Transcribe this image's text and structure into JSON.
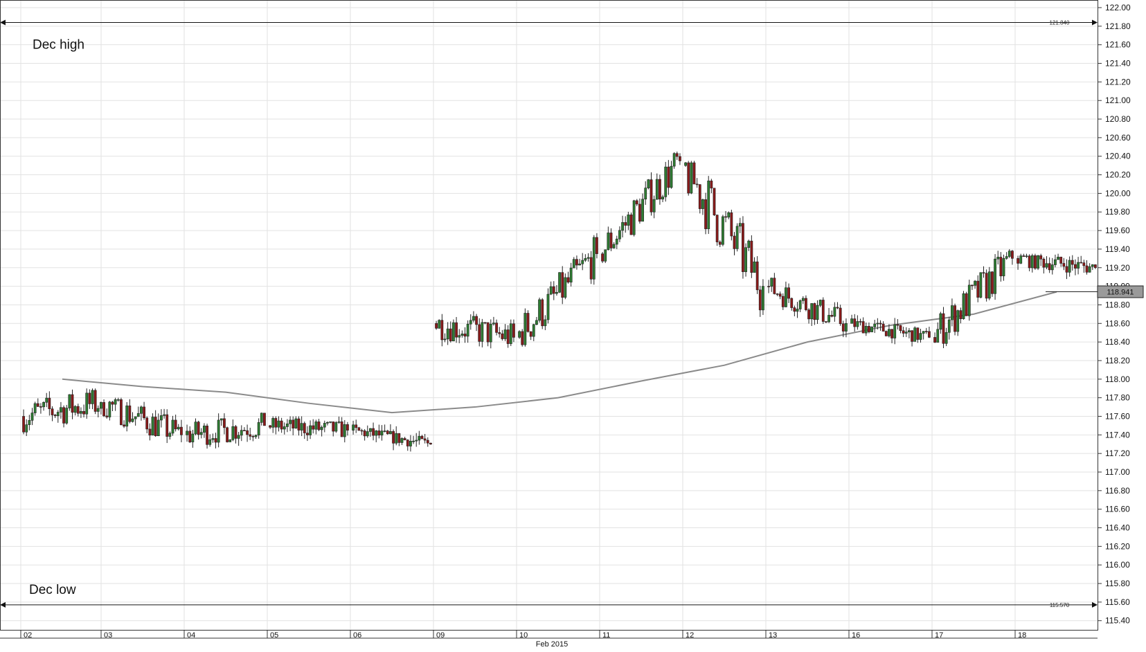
{
  "chart_data": {
    "type": "candlestick",
    "xlabel": "Feb 2015",
    "ylim": [
      115.3,
      122.0
    ],
    "y_ticks": [
      "122.00",
      "121.80",
      "121.60",
      "121.40",
      "121.20",
      "121.00",
      "120.80",
      "120.60",
      "120.40",
      "120.20",
      "120.00",
      "119.80",
      "119.60",
      "119.40",
      "119.20",
      "119.00",
      "118.80",
      "118.60",
      "118.40",
      "118.20",
      "118.00",
      "117.80",
      "117.60",
      "117.40",
      "117.20",
      "117.00",
      "116.80",
      "116.60",
      "116.40",
      "116.20",
      "116.00",
      "115.80",
      "115.60",
      "115.40"
    ],
    "x_days": [
      "02",
      "03",
      "04",
      "05",
      "06",
      "09",
      "10",
      "11",
      "12",
      "13",
      "16",
      "17",
      "18"
    ],
    "current_price": 118.941,
    "current_price_label": "118.941",
    "moving_average": [
      {
        "day": "02",
        "value": 118.0
      },
      {
        "day": "03",
        "value": 117.92
      },
      {
        "day": "04",
        "value": 117.86
      },
      {
        "day": "05",
        "value": 117.74
      },
      {
        "day": "06",
        "value": 117.64
      },
      {
        "day": "09",
        "value": 117.7
      },
      {
        "day": "10",
        "value": 117.8
      },
      {
        "day": "11",
        "value": 117.98
      },
      {
        "day": "12",
        "value": 118.15
      },
      {
        "day": "13",
        "value": 118.4
      },
      {
        "day": "16",
        "value": 118.58
      },
      {
        "day": "17",
        "value": 118.7
      },
      {
        "day": "18",
        "value": 118.94
      }
    ],
    "daily_ranges": [
      {
        "day": "02",
        "open": 117.6,
        "high": 117.9,
        "low": 116.9,
        "close": 117.75
      },
      {
        "day": "03",
        "open": 117.75,
        "high": 117.8,
        "low": 116.9,
        "close": 117.4
      },
      {
        "day": "04",
        "open": 117.4,
        "high": 118.0,
        "low": 117.2,
        "close": 117.5
      },
      {
        "day": "05",
        "open": 117.5,
        "high": 117.6,
        "low": 117.05,
        "close": 117.45
      },
      {
        "day": "06",
        "open": 117.45,
        "high": 117.6,
        "low": 117.2,
        "close": 117.3
      },
      {
        "day": "09",
        "open": 118.6,
        "high": 119.22,
        "low": 118.3,
        "close": 118.45
      },
      {
        "day": "10",
        "open": 118.45,
        "high": 119.6,
        "low": 118.35,
        "close": 119.35
      },
      {
        "day": "11",
        "open": 119.35,
        "high": 120.45,
        "low": 119.25,
        "close": 120.35
      },
      {
        "day": "12",
        "open": 120.3,
        "high": 120.35,
        "low": 118.5,
        "close": 119.0
      },
      {
        "day": "13",
        "open": 119.0,
        "high": 119.2,
        "low": 118.4,
        "close": 118.6
      },
      {
        "day": "16",
        "open": 118.6,
        "high": 118.7,
        "low": 118.25,
        "close": 118.45
      },
      {
        "day": "17",
        "open": 118.45,
        "high": 119.4,
        "low": 118.25,
        "close": 119.3
      },
      {
        "day": "18",
        "open": 119.3,
        "high": 119.35,
        "low": 118.85,
        "close": 119.2
      }
    ],
    "reference_lines": [
      {
        "name": "Dec high",
        "value": 121.84,
        "value_label": "121.840"
      },
      {
        "name": "Dec low",
        "value": 115.57,
        "value_label": "115.570"
      }
    ],
    "up_color": "#2e7d32",
    "down_color": "#8b1a1a",
    "grid": true,
    "legend": "none"
  }
}
